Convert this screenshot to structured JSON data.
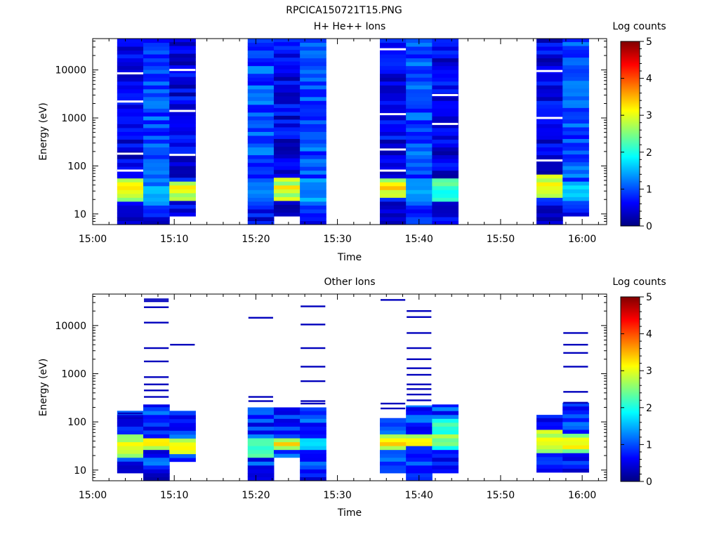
{
  "page_title": "RPCICA150721T15.PNG",
  "chart_data": [
    {
      "type": "heatmap",
      "title": "H+ He++ Ions",
      "xlabel": "Time",
      "ylabel": "Energy (eV)",
      "x_ticks": [
        "15:00",
        "15:10",
        "15:20",
        "15:30",
        "15:40",
        "15:50",
        "16:00"
      ],
      "x_range_minutes": [
        0,
        63
      ],
      "y_scale": "log",
      "y_range": [
        6,
        45000
      ],
      "y_ticks": [
        10,
        100,
        1000,
        10000
      ],
      "y_tick_labels": [
        "10",
        "100",
        "1000",
        "10000"
      ],
      "colorbar": {
        "label": "Log counts",
        "range": [
          0,
          5
        ],
        "ticks": [
          "0",
          "1",
          "2",
          "3",
          "4",
          "5"
        ]
      },
      "columns": [
        {
          "t0": 3.0,
          "t1": 6.2,
          "emin": 6,
          "emax": 45000,
          "profile": "hbg",
          "seed": 11,
          "bands": [
            [
              18,
              60,
              3.0
            ],
            [
              25,
              45,
              3.3
            ]
          ],
          "gaps": [
            8500,
            2200,
            180,
            80
          ]
        },
        {
          "t0": 6.2,
          "t1": 9.4,
          "emin": 6,
          "emax": 45000,
          "profile": "hbg2",
          "seed": 12,
          "bands": [
            [
              15,
              40,
              1.8
            ]
          ],
          "gaps": []
        },
        {
          "t0": 9.4,
          "t1": 12.6,
          "emin": 9,
          "emax": 45000,
          "profile": "hbg",
          "seed": 13,
          "bands": [
            [
              20,
              50,
              3.0
            ],
            [
              28,
              40,
              3.4
            ]
          ],
          "gaps": [
            10000,
            1400,
            170
          ]
        },
        {
          "t0": 19.0,
          "t1": 22.2,
          "emin": 6,
          "emax": 45000,
          "profile": "hbg2",
          "seed": 14,
          "bands": [
            [
              15,
              45,
              1.4
            ]
          ],
          "gaps": []
        },
        {
          "t0": 22.2,
          "t1": 25.4,
          "emin": 9,
          "emax": 45000,
          "profile": "hbg",
          "seed": 15,
          "bands": [
            [
              20,
              55,
              3.0
            ],
            [
              28,
              40,
              3.4
            ]
          ],
          "gaps": []
        },
        {
          "t0": 25.4,
          "t1": 28.6,
          "emin": 6,
          "emax": 45000,
          "profile": "hbg2",
          "seed": 16,
          "bands": [
            [
              15,
              60,
              1.6
            ]
          ],
          "gaps": []
        },
        {
          "t0": 35.2,
          "t1": 38.4,
          "emin": 6,
          "emax": 45000,
          "profile": "hbg",
          "seed": 17,
          "bands": [
            [
              22,
              60,
              3.0
            ],
            [
              30,
              45,
              3.6
            ]
          ],
          "gaps": [
            27000,
            1200,
            220,
            80
          ]
        },
        {
          "t0": 38.4,
          "t1": 41.6,
          "emin": 6,
          "emax": 45000,
          "profile": "hbg2",
          "seed": 18,
          "bands": [
            [
              25,
              60,
              1.6
            ]
          ],
          "gaps": []
        },
        {
          "t0": 41.6,
          "t1": 44.8,
          "emin": 6,
          "emax": 45000,
          "profile": "hbg",
          "seed": 19,
          "bands": [
            [
              20,
              60,
              2.4
            ]
          ],
          "gaps": [
            3000,
            750
          ]
        },
        {
          "t0": 54.4,
          "t1": 57.6,
          "emin": 6,
          "emax": 45000,
          "profile": "hbg",
          "seed": 20,
          "bands": [
            [
              22,
              70,
              3.0
            ],
            [
              30,
              50,
              3.4
            ]
          ],
          "gaps": [
            9500,
            1000,
            130
          ]
        },
        {
          "t0": 57.6,
          "t1": 60.8,
          "emin": 9,
          "emax": 45000,
          "profile": "hbg2",
          "seed": 21,
          "bands": [
            [
              20,
              50,
              1.9
            ]
          ],
          "gaps": []
        }
      ]
    },
    {
      "type": "heatmap",
      "title": "Other Ions",
      "xlabel": "Time",
      "ylabel": "Energy (eV)",
      "x_ticks": [
        "15:00",
        "15:10",
        "15:20",
        "15:30",
        "15:40",
        "15:50",
        "16:00"
      ],
      "x_range_minutes": [
        0,
        63
      ],
      "y_scale": "log",
      "y_range": [
        6,
        45000
      ],
      "y_ticks": [
        10,
        100,
        1000,
        10000
      ],
      "y_tick_labels": [
        "10",
        "100",
        "1000",
        "10000"
      ],
      "colorbar": {
        "label": "Log counts",
        "range": [
          0,
          5
        ],
        "ticks": [
          "0",
          "1",
          "2",
          "3",
          "4",
          "5"
        ]
      },
      "columns": [
        {
          "t0": 3.0,
          "t1": 6.2,
          "emin": 6,
          "emax": 170,
          "profile": "oth",
          "seed": 31,
          "bands": [
            [
              18,
              60,
              3.0
            ],
            [
              28,
              40,
              3.3
            ]
          ],
          "holes": [
            [
              6,
              9.5
            ]
          ],
          "lines": [
            150,
            120
          ]
        },
        {
          "t0": 6.2,
          "t1": 9.4,
          "emin": 6,
          "emax": 230,
          "profile": "oth",
          "seed": 32,
          "bands": [
            [
              25,
              50,
              3.2
            ],
            [
              30,
              40,
              3.5
            ]
          ],
          "holes": [],
          "lines": [
            35000,
            32000,
            24000,
            11500,
            3400,
            1800,
            850,
            600,
            450,
            330
          ]
        },
        {
          "t0": 9.4,
          "t1": 12.6,
          "emin": 15,
          "emax": 170,
          "profile": "oth",
          "seed": 33,
          "bands": [
            [
              20,
              50,
              3.0
            ],
            [
              28,
              38,
              3.3
            ]
          ],
          "holes": [],
          "lines": [
            4000
          ]
        },
        {
          "t0": 19.0,
          "t1": 22.2,
          "emin": 6,
          "emax": 200,
          "profile": "oth",
          "seed": 34,
          "bands": [
            [
              20,
              45,
              2.4
            ]
          ],
          "holes": [],
          "lines": [
            14500,
            330,
            270
          ]
        },
        {
          "t0": 22.2,
          "t1": 25.4,
          "emin": 6,
          "emax": 200,
          "profile": "oth",
          "seed": 35,
          "bands": [
            [
              25,
              50,
              3.1
            ],
            [
              30,
              40,
              3.4
            ]
          ],
          "holes": [
            [
              6,
              20
            ]
          ],
          "lines": []
        },
        {
          "t0": 25.4,
          "t1": 28.6,
          "emin": 6,
          "emax": 200,
          "profile": "oth",
          "seed": 36,
          "bands": [
            [
              25,
              45,
              2.0
            ]
          ],
          "holes": [],
          "lines": [
            25000,
            10500,
            3400,
            1400,
            700,
            270,
            240
          ]
        },
        {
          "t0": 35.2,
          "t1": 38.4,
          "emin": 6,
          "emax": 120,
          "profile": "oth",
          "seed": 37,
          "bands": [
            [
              25,
              60,
              3.1
            ],
            [
              30,
              45,
              3.6
            ]
          ],
          "holes": [
            [
              6,
              9.5
            ]
          ],
          "lines": [
            34000,
            240,
            190
          ]
        },
        {
          "t0": 38.4,
          "t1": 41.6,
          "emin": 6,
          "emax": 220,
          "profile": "oth",
          "seed": 38,
          "bands": [
            [
              30,
              60,
              3.0
            ],
            [
              35,
              50,
              3.4
            ]
          ],
          "holes": [],
          "lines": [
            20000,
            15000,
            7000,
            3400,
            2000,
            1300,
            950,
            600,
            480,
            370,
            280
          ]
        },
        {
          "t0": 41.6,
          "t1": 44.8,
          "emin": 6,
          "emax": 230,
          "profile": "oth",
          "seed": 39,
          "bands": [
            [
              25,
              110,
              2.4
            ],
            [
              30,
              60,
              2.8
            ]
          ],
          "holes": [
            [
              6,
              9.5
            ]
          ],
          "lines": []
        },
        {
          "t0": 54.4,
          "t1": 57.6,
          "emin": 9,
          "emax": 140,
          "profile": "oth",
          "seed": 40,
          "bands": [
            [
              25,
              70,
              3.0
            ],
            [
              32,
              50,
              3.3
            ]
          ],
          "holes": [],
          "lines": []
        },
        {
          "t0": 57.6,
          "t1": 60.8,
          "emin": 9,
          "emax": 250,
          "profile": "oth",
          "seed": 41,
          "bands": [
            [
              25,
              60,
              2.8
            ],
            [
              30,
              45,
              3.3
            ]
          ],
          "holes": [],
          "lines": [
            7000,
            4000,
            2700,
            1400,
            420,
            250
          ]
        }
      ]
    }
  ]
}
